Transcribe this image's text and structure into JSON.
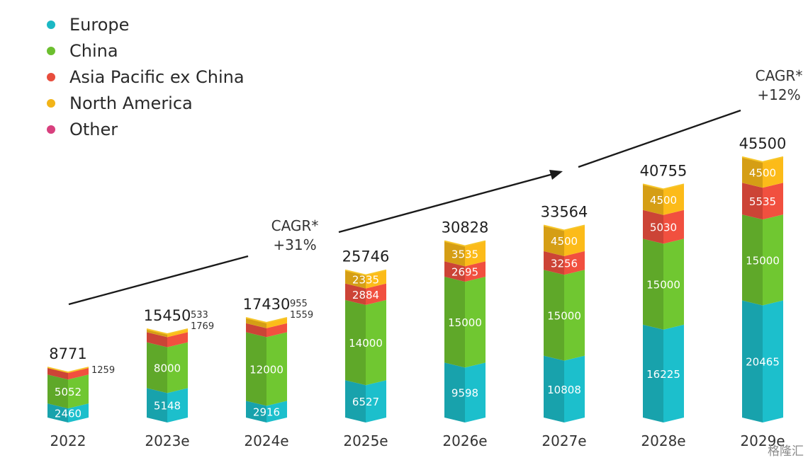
{
  "legend": [
    {
      "label": "Europe",
      "color": "#1bb8c4"
    },
    {
      "label": "China",
      "color": "#6cbf2f"
    },
    {
      "label": "Asia Pacific ex China",
      "color": "#e84d3d"
    },
    {
      "label": "North America",
      "color": "#f2b418"
    },
    {
      "label": "Other",
      "color": "#d8407e"
    }
  ],
  "annotations": {
    "cagr1_label": "CAGR*",
    "cagr1_value": "+31%",
    "cagr2_label": "CAGR*",
    "cagr2_value": "+12%"
  },
  "watermark": "格隆汇",
  "chart_data": {
    "type": "bar",
    "stacked": true,
    "categories": [
      "2022",
      "2023e",
      "2024e",
      "2025e",
      "2026e",
      "2027e",
      "2028e",
      "2029e"
    ],
    "totals": [
      8771,
      15450,
      17430,
      25746,
      30828,
      33564,
      40755,
      45500
    ],
    "series": [
      {
        "name": "Europe",
        "values": [
          2460,
          5148,
          2916,
          6527,
          9598,
          10808,
          16225,
          20465
        ]
      },
      {
        "name": "China",
        "values": [
          5052,
          8000,
          12000,
          14000,
          15000,
          15000,
          15000,
          15000
        ]
      },
      {
        "name": "Asia Pacific ex China",
        "values": [
          1259,
          1769,
          1559,
          2884,
          2695,
          3256,
          5030,
          5535
        ]
      },
      {
        "name": "North America",
        "values": [
          0,
          533,
          955,
          2335,
          3535,
          4500,
          4500,
          4500
        ]
      }
    ],
    "side_labels": [
      [
        "1259"
      ],
      [
        "533",
        "1769"
      ],
      [
        "955",
        "1559"
      ],
      [],
      [],
      [],
      [],
      []
    ],
    "inside_labels": [
      [
        "2460",
        "5052",
        "",
        ""
      ],
      [
        "5148",
        "8000",
        "",
        ""
      ],
      [
        "2916",
        "12000",
        "",
        ""
      ],
      [
        "6527",
        "14000",
        "2884",
        "2335"
      ],
      [
        "9598",
        "15000",
        "2695",
        "3535"
      ],
      [
        "10808",
        "15000",
        "3256",
        "4500"
      ],
      [
        "16225",
        "15000",
        "5030",
        "4500"
      ],
      [
        "20465",
        "15000",
        "5535",
        "4500"
      ]
    ],
    "ylim": [
      0,
      45500
    ]
  }
}
